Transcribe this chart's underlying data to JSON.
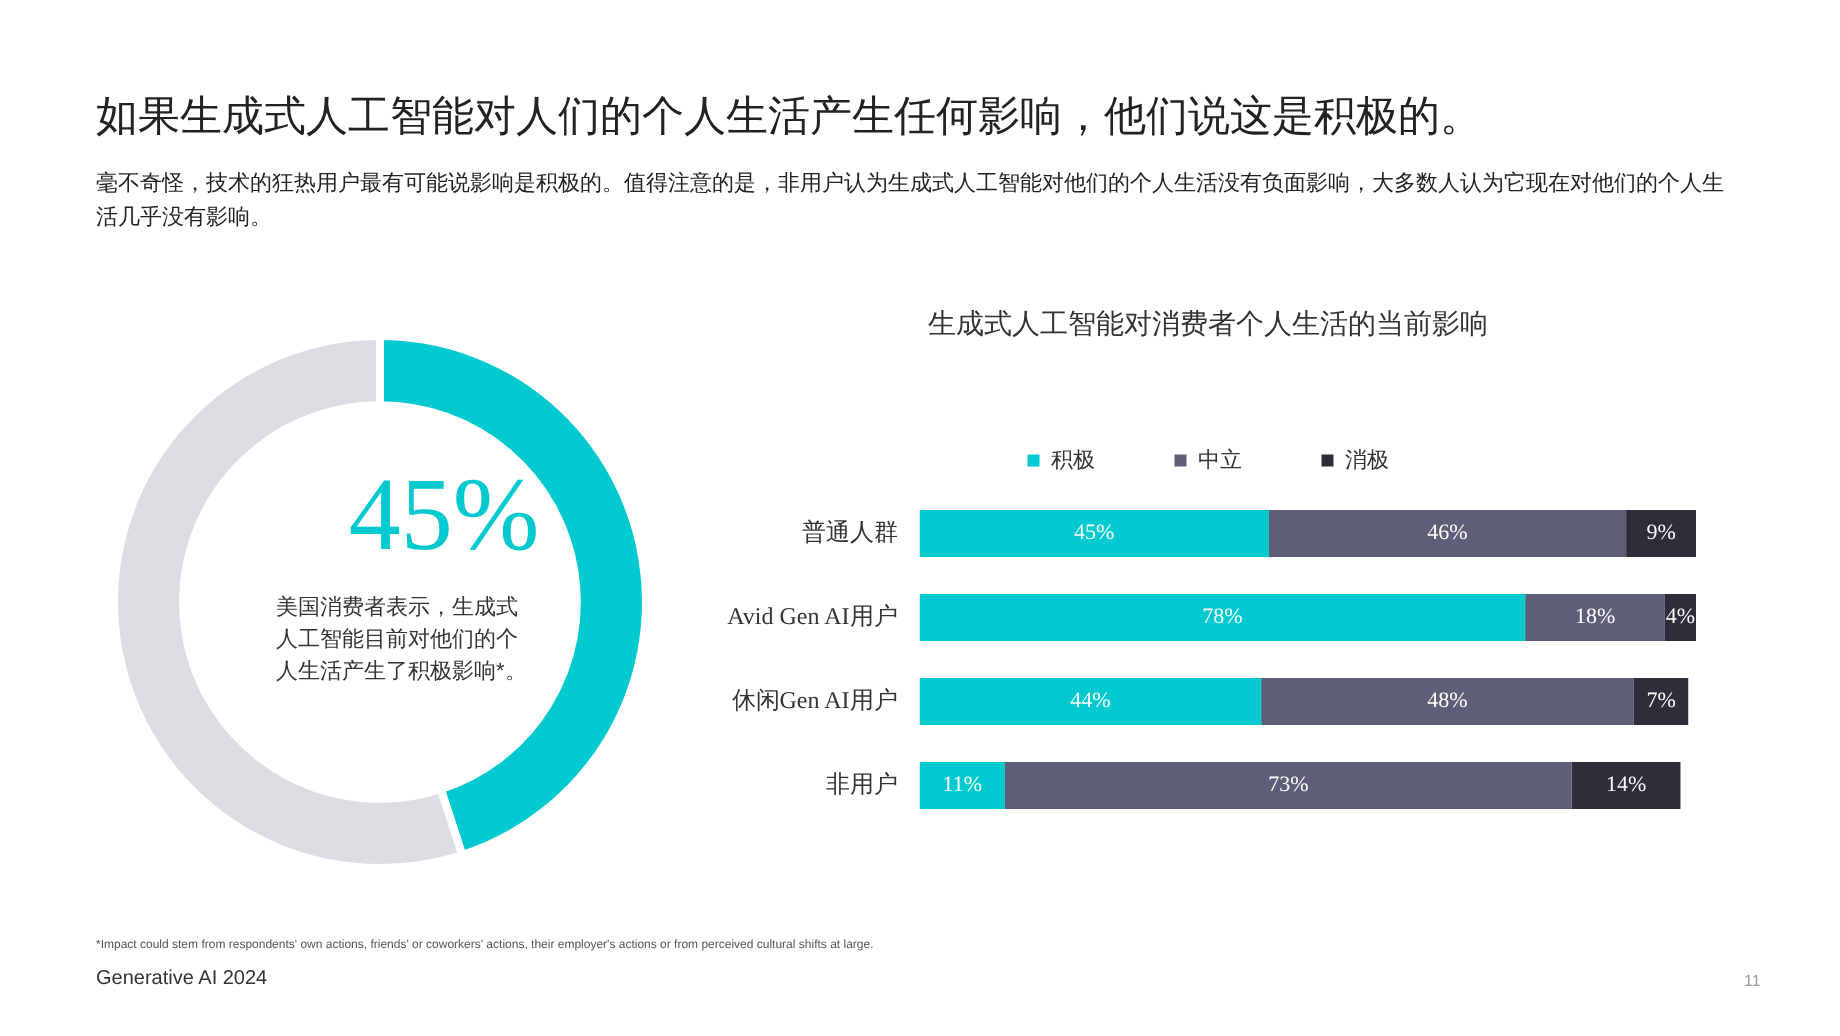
{
  "chart_data": [
    {
      "type": "donut",
      "title": "如果生成式人工智能对人们的个人生活产生任何影响，他们说这是积极的。",
      "subtitle": "毫不奇怪，技术的狂热用户最有可能说影响是积极的。值得注意的是，非用户认为生成式人工智能对他们的个人生活没有负面影响，大多数人认为它现在对他们的个人生活几乎没有影响。",
      "categories": [
        null,
        null
      ],
      "values": [
        45,
        55
      ],
      "colors": [
        "#00c9d0",
        "#dddde3"
      ],
      "value_labels": [
        "45%",
        null
      ],
      "annotations": [
        "美国消费者表示，生成式人工智能目前对他们的个人生活产生了积极影响*。"
      ]
    },
    {
      "type": "bar",
      "title": "生成式人工智能对消费者个人生活的当前影响",
      "orientation": "horizontal",
      "stacked": true,
      "categories": [
        "普通人群",
        "Avid Gen AI用户",
        "休闲Gen AI用户",
        "非用户"
      ],
      "xlim": [
        0,
        100
      ],
      "tick_labels": "y",
      "grid": false,
      "legend": "top",
      "series": [
        {
          "name": "积极",
          "color": "#00c9d0",
          "values": [
            45,
            78,
            44,
            11
          ],
          "value_labels": [
            "45%",
            "78%",
            "44%",
            "11%"
          ]
        },
        {
          "name": "中立",
          "color": "#5f5e78",
          "values": [
            46,
            18,
            48,
            73
          ],
          "value_labels": [
            "46%",
            "18%",
            "48%",
            "73%"
          ]
        },
        {
          "name": "消极",
          "color": "#2f2d3a",
          "values": [
            9,
            4,
            7,
            14
          ],
          "value_labels": [
            "9%",
            "4%",
            "7%",
            "14%"
          ]
        }
      ],
      "annotations": [
        "*Impact could stem from respondents' own actions, friends' or coworkers' actions, their employer's actions or from perceived cultural shifts at large.",
        "Generative AI 2024",
        "11"
      ]
    }
  ]
}
